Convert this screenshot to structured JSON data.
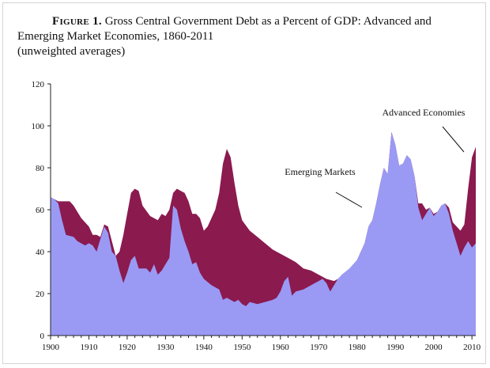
{
  "figure": {
    "label": "Figure 1.",
    "title_line1": "Gross Central Government Debt as a Percent of GDP: Advanced and",
    "title_line2": "Emerging Market Economies, 1860-2011",
    "subtitle": "(unweighted averages)"
  },
  "colors": {
    "advanced_fill": "#8B1A4F",
    "emerging_fill": "#9A9AF5",
    "axis": "#222222"
  },
  "chart_data": {
    "type": "area",
    "title": "Gross Central Government Debt as a Percent of GDP: Advanced and Emerging Market Economies, 1860-2011",
    "subtitle": "(unweighted averages)",
    "xlabel": "",
    "ylabel": "",
    "xlim": [
      1900,
      2011
    ],
    "ylim": [
      0,
      120
    ],
    "x_ticks": [
      1900,
      1910,
      1920,
      1930,
      1940,
      1950,
      1960,
      1970,
      1980,
      1990,
      2000,
      2010
    ],
    "y_ticks": [
      0,
      20,
      40,
      60,
      80,
      100,
      120
    ],
    "grid": false,
    "series": [
      {
        "name": "Advanced Economies",
        "points": [
          [
            1900,
            66
          ],
          [
            1902,
            64
          ],
          [
            1903,
            64
          ],
          [
            1905,
            64
          ],
          [
            1906,
            62
          ],
          [
            1908,
            56
          ],
          [
            1910,
            52
          ],
          [
            1911,
            48
          ],
          [
            1912,
            48
          ],
          [
            1913,
            47
          ],
          [
            1914,
            53
          ],
          [
            1915,
            52
          ],
          [
            1917,
            38
          ],
          [
            1918,
            40
          ],
          [
            1919,
            48
          ],
          [
            1920,
            58
          ],
          [
            1921,
            68
          ],
          [
            1922,
            70
          ],
          [
            1923,
            69
          ],
          [
            1924,
            62
          ],
          [
            1926,
            57
          ],
          [
            1928,
            55
          ],
          [
            1929,
            58
          ],
          [
            1930,
            57
          ],
          [
            1931,
            60
          ],
          [
            1932,
            68
          ],
          [
            1933,
            70
          ],
          [
            1934,
            69
          ],
          [
            1935,
            68
          ],
          [
            1936,
            64
          ],
          [
            1937,
            58
          ],
          [
            1938,
            58
          ],
          [
            1939,
            56
          ],
          [
            1940,
            50
          ],
          [
            1941,
            52
          ],
          [
            1943,
            60
          ],
          [
            1944,
            68
          ],
          [
            1945,
            82
          ],
          [
            1946,
            89
          ],
          [
            1947,
            85
          ],
          [
            1948,
            73
          ],
          [
            1949,
            62
          ],
          [
            1950,
            55
          ],
          [
            1952,
            50
          ],
          [
            1954,
            47
          ],
          [
            1956,
            44
          ],
          [
            1958,
            41
          ],
          [
            1960,
            39
          ],
          [
            1962,
            37
          ],
          [
            1964,
            35
          ],
          [
            1966,
            32
          ],
          [
            1968,
            31
          ],
          [
            1970,
            29
          ],
          [
            1972,
            27
          ],
          [
            1974,
            26
          ],
          [
            1976,
            28
          ],
          [
            1978,
            31
          ],
          [
            1980,
            36
          ],
          [
            1982,
            44
          ],
          [
            1983,
            52
          ],
          [
            1984,
            55
          ],
          [
            1985,
            63
          ],
          [
            1986,
            72
          ],
          [
            1987,
            80
          ],
          [
            1988,
            77
          ],
          [
            1989,
            97
          ],
          [
            1990,
            91
          ],
          [
            1991,
            81
          ],
          [
            1992,
            82
          ],
          [
            1993,
            86
          ],
          [
            1994,
            84
          ],
          [
            1995,
            76
          ],
          [
            1996,
            63
          ],
          [
            1997,
            63
          ],
          [
            1998,
            60
          ],
          [
            1999,
            61
          ],
          [
            2000,
            58
          ],
          [
            2001,
            59
          ],
          [
            2002,
            62
          ],
          [
            2003,
            63
          ],
          [
            2004,
            61
          ],
          [
            2005,
            54
          ],
          [
            2006,
            52
          ],
          [
            2007,
            50
          ],
          [
            2008,
            53
          ],
          [
            2009,
            70
          ],
          [
            2010,
            85
          ],
          [
            2011,
            90
          ]
        ]
      },
      {
        "name": "Emerging Markets",
        "points": [
          [
            1900,
            66
          ],
          [
            1901,
            65
          ],
          [
            1902,
            63
          ],
          [
            1903,
            55
          ],
          [
            1904,
            48
          ],
          [
            1906,
            47
          ],
          [
            1907,
            45
          ],
          [
            1909,
            43
          ],
          [
            1910,
            44
          ],
          [
            1911,
            43
          ],
          [
            1912,
            40
          ],
          [
            1913,
            46
          ],
          [
            1914,
            52
          ],
          [
            1915,
            49
          ],
          [
            1916,
            40
          ],
          [
            1917,
            38
          ],
          [
            1918,
            31
          ],
          [
            1919,
            25
          ],
          [
            1920,
            30
          ],
          [
            1921,
            36
          ],
          [
            1922,
            38
          ],
          [
            1923,
            32
          ],
          [
            1925,
            32
          ],
          [
            1926,
            30
          ],
          [
            1927,
            34
          ],
          [
            1928,
            29
          ],
          [
            1929,
            31
          ],
          [
            1930,
            34
          ],
          [
            1931,
            37
          ],
          [
            1932,
            62
          ],
          [
            1933,
            60
          ],
          [
            1934,
            51
          ],
          [
            1935,
            45
          ],
          [
            1936,
            40
          ],
          [
            1937,
            34
          ],
          [
            1938,
            35
          ],
          [
            1939,
            30
          ],
          [
            1940,
            27
          ],
          [
            1942,
            24
          ],
          [
            1944,
            22
          ],
          [
            1945,
            17
          ],
          [
            1946,
            18
          ],
          [
            1948,
            16
          ],
          [
            1949,
            17
          ],
          [
            1950,
            15
          ],
          [
            1951,
            14
          ],
          [
            1952,
            16
          ],
          [
            1954,
            15
          ],
          [
            1956,
            16
          ],
          [
            1958,
            17
          ],
          [
            1959,
            18
          ],
          [
            1960,
            21
          ],
          [
            1961,
            26
          ],
          [
            1962,
            28
          ],
          [
            1963,
            19
          ],
          [
            1964,
            21
          ],
          [
            1966,
            22
          ],
          [
            1968,
            24
          ],
          [
            1970,
            26
          ],
          [
            1971,
            27
          ],
          [
            1972,
            25
          ],
          [
            1973,
            21
          ],
          [
            1974,
            24
          ],
          [
            1975,
            27
          ],
          [
            1976,
            29
          ],
          [
            1978,
            32
          ],
          [
            1980,
            36
          ],
          [
            1982,
            44
          ],
          [
            1983,
            52
          ],
          [
            1984,
            55
          ],
          [
            1985,
            63
          ],
          [
            1986,
            72
          ],
          [
            1987,
            80
          ],
          [
            1988,
            77
          ],
          [
            1989,
            97
          ],
          [
            1990,
            91
          ],
          [
            1991,
            81
          ],
          [
            1992,
            82
          ],
          [
            1993,
            86
          ],
          [
            1994,
            84
          ],
          [
            1995,
            76
          ],
          [
            1996,
            61
          ],
          [
            1997,
            55
          ],
          [
            1998,
            58
          ],
          [
            1999,
            61
          ],
          [
            2000,
            57
          ],
          [
            2001,
            59
          ],
          [
            2002,
            62
          ],
          [
            2003,
            63
          ],
          [
            2004,
            58
          ],
          [
            2005,
            50
          ],
          [
            2006,
            44
          ],
          [
            2007,
            38
          ],
          [
            2008,
            42
          ],
          [
            2009,
            45
          ],
          [
            2010,
            42
          ],
          [
            2011,
            44
          ]
        ]
      }
    ],
    "annotations": [
      {
        "text": "Advanced Economies",
        "series": "Advanced Economies"
      },
      {
        "text": "Emerging Markets",
        "series": "Emerging Markets"
      }
    ]
  }
}
